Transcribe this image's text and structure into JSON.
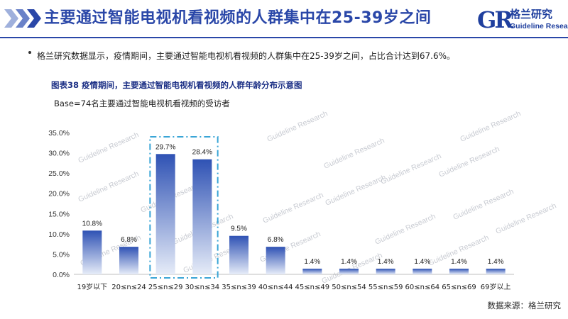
{
  "header": {
    "title": "主要通过智能电视机看视频的人群集中在25-39岁之间",
    "logo_mark": "GR",
    "logo_cn": "格兰研究",
    "logo_en": "Guideline Research"
  },
  "bullet": "格兰研究数据显示，疫情期间，主要通过智能电视机看视频的人群集中在25-39岁之间，占比合计达到67.6%。",
  "figure": {
    "title": "图表38 疫情期间，主要通过智能电视机看视频的人群年龄分布示意图",
    "base": "Base=74名主要通过智能电视机看视频的受访者"
  },
  "watermark": "Guideline Research",
  "source": "数据来源：格兰研究",
  "colors": {
    "accent": "#2a47a8",
    "bar_top": "#2f52b4",
    "bar_bottom": "#e6ecf8",
    "highlight_box": "#3aa5d6"
  },
  "chart_data": {
    "type": "bar",
    "categories": [
      "19岁以下",
      "20≤n≤24",
      "25≤n≤29",
      "30≤n≤34",
      "35≤n≤39",
      "40≤n≤44",
      "45≤n≤49",
      "50≤n≤54",
      "55≤n≤59",
      "60≤n≤64",
      "65≤n≤69",
      "69岁以上"
    ],
    "values": [
      10.8,
      6.8,
      29.7,
      28.4,
      9.5,
      6.8,
      1.4,
      1.4,
      1.4,
      1.4,
      1.4,
      1.4
    ],
    "value_labels": [
      "10.8%",
      "6.8%",
      "29.7%",
      "28.4%",
      "9.5%",
      "6.8%",
      "1.4%",
      "1.4%",
      "1.4%",
      "1.4%",
      "1.4%",
      "1.4%"
    ],
    "yticks": [
      "0.0%",
      "5.0%",
      "10.0%",
      "15.0%",
      "20.0%",
      "25.0%",
      "30.0%",
      "35.0%"
    ],
    "ylim": [
      0,
      35
    ],
    "highlight_categories": [
      "25≤n≤29",
      "30≤n≤34"
    ],
    "grid": false,
    "legend": "none"
  }
}
